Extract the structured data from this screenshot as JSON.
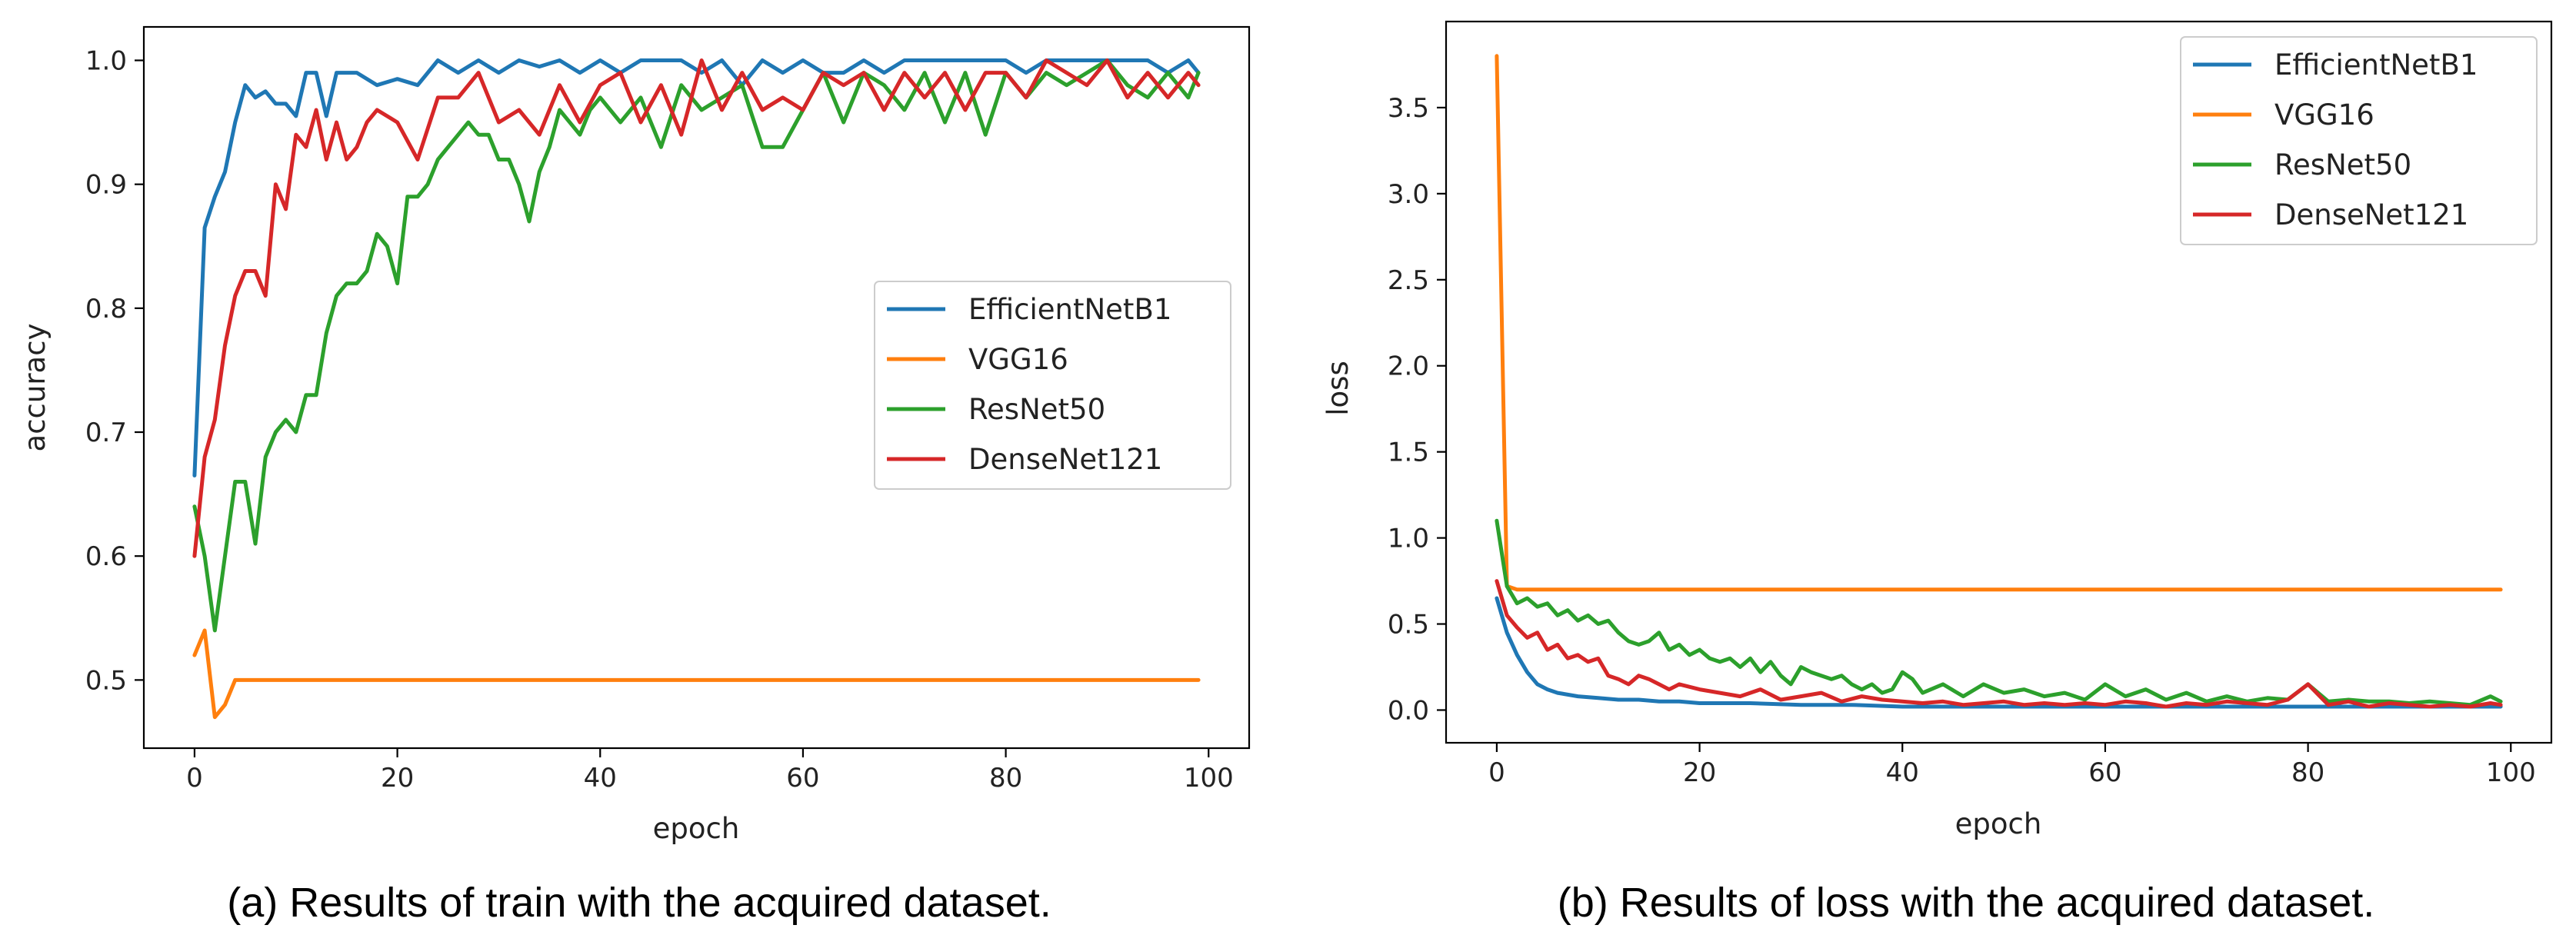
{
  "chart_data": [
    {
      "type": "line",
      "caption": "(a) Results of train with the acquired dataset.",
      "xlabel": "epoch",
      "ylabel": "accuracy",
      "xlim": [
        -5,
        104
      ],
      "ylim": [
        0.445,
        1.027
      ],
      "xticks": [
        0,
        20,
        40,
        60,
        80,
        100
      ],
      "xtick_labels": [
        "0",
        "20",
        "40",
        "60",
        "80",
        "100"
      ],
      "yticks": [
        0.5,
        0.6,
        0.7,
        0.8,
        0.9,
        1.0
      ],
      "ytick_labels": [
        "0.5",
        "0.6",
        "0.7",
        "0.8",
        "0.9",
        "1.0"
      ],
      "legend_position": "center-right",
      "series": [
        {
          "name": "EfficientNetB1",
          "color": "#1f77b4",
          "x": [
            0,
            1,
            2,
            3,
            4,
            5,
            6,
            7,
            8,
            9,
            10,
            11,
            12,
            13,
            14,
            16,
            18,
            20,
            22,
            24,
            26,
            28,
            30,
            32,
            34,
            36,
            38,
            40,
            42,
            44,
            46,
            48,
            50,
            52,
            54,
            56,
            58,
            60,
            62,
            64,
            66,
            68,
            70,
            72,
            74,
            76,
            78,
            80,
            82,
            84,
            86,
            88,
            90,
            92,
            94,
            96,
            98,
            99
          ],
          "y": [
            0.665,
            0.865,
            0.89,
            0.91,
            0.95,
            0.98,
            0.97,
            0.975,
            0.965,
            0.965,
            0.955,
            0.99,
            0.99,
            0.955,
            0.99,
            0.99,
            0.98,
            0.985,
            0.98,
            1.0,
            0.99,
            1.0,
            0.99,
            1.0,
            0.995,
            1.0,
            0.99,
            1.0,
            0.99,
            1.0,
            1.0,
            1.0,
            0.99,
            1.0,
            0.98,
            1.0,
            0.99,
            1.0,
            0.99,
            0.99,
            1.0,
            0.99,
            1.0,
            1.0,
            1.0,
            1.0,
            1.0,
            1.0,
            0.99,
            1.0,
            1.0,
            1.0,
            1.0,
            1.0,
            1.0,
            0.99,
            1.0,
            0.99
          ]
        },
        {
          "name": "VGG16",
          "color": "#ff7f0e",
          "x": [
            0,
            1,
            2,
            3,
            4,
            5,
            10,
            20,
            40,
            60,
            80,
            99
          ],
          "y": [
            0.52,
            0.54,
            0.47,
            0.48,
            0.5,
            0.5,
            0.5,
            0.5,
            0.5,
            0.5,
            0.5,
            0.5
          ]
        },
        {
          "name": "ResNet50",
          "color": "#2ca02c",
          "x": [
            0,
            1,
            2,
            3,
            4,
            5,
            6,
            7,
            8,
            9,
            10,
            11,
            12,
            13,
            14,
            15,
            16,
            17,
            18,
            19,
            20,
            21,
            22,
            23,
            24,
            25,
            26,
            27,
            28,
            29,
            30,
            31,
            32,
            33,
            34,
            35,
            36,
            37,
            38,
            39,
            40,
            42,
            44,
            46,
            48,
            50,
            52,
            54,
            56,
            58,
            60,
            62,
            64,
            66,
            68,
            70,
            72,
            74,
            76,
            78,
            80,
            82,
            84,
            86,
            88,
            90,
            92,
            94,
            96,
            98,
            99
          ],
          "y": [
            0.64,
            0.6,
            0.54,
            0.6,
            0.66,
            0.66,
            0.61,
            0.68,
            0.7,
            0.71,
            0.7,
            0.73,
            0.73,
            0.78,
            0.81,
            0.82,
            0.82,
            0.83,
            0.86,
            0.85,
            0.82,
            0.89,
            0.89,
            0.9,
            0.92,
            0.93,
            0.94,
            0.95,
            0.94,
            0.94,
            0.92,
            0.92,
            0.9,
            0.87,
            0.91,
            0.93,
            0.96,
            0.95,
            0.94,
            0.96,
            0.97,
            0.95,
            0.97,
            0.93,
            0.98,
            0.96,
            0.97,
            0.98,
            0.93,
            0.93,
            0.96,
            0.99,
            0.95,
            0.99,
            0.98,
            0.96,
            0.99,
            0.95,
            0.99,
            0.94,
            0.99,
            0.97,
            0.99,
            0.98,
            0.99,
            1.0,
            0.98,
            0.97,
            0.99,
            0.97,
            0.99
          ]
        },
        {
          "name": "DenseNet121",
          "color": "#d62728",
          "x": [
            0,
            1,
            2,
            3,
            4,
            5,
            6,
            7,
            8,
            9,
            10,
            11,
            12,
            13,
            14,
            15,
            16,
            17,
            18,
            20,
            22,
            24,
            26,
            28,
            30,
            32,
            34,
            36,
            38,
            40,
            42,
            44,
            46,
            48,
            50,
            52,
            54,
            56,
            58,
            60,
            62,
            64,
            66,
            68,
            70,
            72,
            74,
            76,
            78,
            80,
            82,
            84,
            86,
            88,
            90,
            92,
            94,
            96,
            98,
            99
          ],
          "y": [
            0.6,
            0.68,
            0.71,
            0.77,
            0.81,
            0.83,
            0.83,
            0.81,
            0.9,
            0.88,
            0.94,
            0.93,
            0.96,
            0.92,
            0.95,
            0.92,
            0.93,
            0.95,
            0.96,
            0.95,
            0.92,
            0.97,
            0.97,
            0.99,
            0.95,
            0.96,
            0.94,
            0.98,
            0.95,
            0.98,
            0.99,
            0.95,
            0.98,
            0.94,
            1.0,
            0.96,
            0.99,
            0.96,
            0.97,
            0.96,
            0.99,
            0.98,
            0.99,
            0.96,
            0.99,
            0.97,
            0.99,
            0.96,
            0.99,
            0.99,
            0.97,
            1.0,
            0.99,
            0.98,
            1.0,
            0.97,
            0.99,
            0.97,
            0.99,
            0.98
          ]
        }
      ]
    },
    {
      "type": "line",
      "caption": "(b) Results of loss with the acquired dataset.",
      "xlabel": "epoch",
      "ylabel": "loss",
      "xlim": [
        -5,
        104
      ],
      "ylim": [
        -0.19,
        4.0
      ],
      "xticks": [
        0,
        20,
        40,
        60,
        80,
        100
      ],
      "xtick_labels": [
        "0",
        "20",
        "40",
        "60",
        "80",
        "100"
      ],
      "yticks": [
        0.0,
        0.5,
        1.0,
        1.5,
        2.0,
        2.5,
        3.0,
        3.5
      ],
      "ytick_labels": [
        "0.0",
        "0.5",
        "1.0",
        "1.5",
        "2.0",
        "2.5",
        "3.0",
        "3.5"
      ],
      "legend_position": "top-right",
      "series": [
        {
          "name": "EfficientNetB1",
          "color": "#1f77b4",
          "x": [
            0,
            1,
            2,
            3,
            4,
            5,
            6,
            8,
            10,
            12,
            14,
            16,
            18,
            20,
            25,
            30,
            35,
            40,
            50,
            60,
            70,
            80,
            90,
            99
          ],
          "y": [
            0.65,
            0.45,
            0.32,
            0.22,
            0.15,
            0.12,
            0.1,
            0.08,
            0.07,
            0.06,
            0.06,
            0.05,
            0.05,
            0.04,
            0.04,
            0.03,
            0.03,
            0.02,
            0.02,
            0.02,
            0.02,
            0.02,
            0.02,
            0.02
          ]
        },
        {
          "name": "VGG16",
          "color": "#ff7f0e",
          "x": [
            0,
            1,
            2,
            3,
            5,
            10,
            20,
            40,
            60,
            80,
            99
          ],
          "y": [
            3.8,
            0.72,
            0.7,
            0.7,
            0.7,
            0.7,
            0.7,
            0.7,
            0.7,
            0.7,
            0.7
          ]
        },
        {
          "name": "ResNet50",
          "color": "#2ca02c",
          "x": [
            0,
            1,
            2,
            3,
            4,
            5,
            6,
            7,
            8,
            9,
            10,
            11,
            12,
            13,
            14,
            15,
            16,
            17,
            18,
            19,
            20,
            21,
            22,
            23,
            24,
            25,
            26,
            27,
            28,
            29,
            30,
            31,
            32,
            33,
            34,
            35,
            36,
            37,
            38,
            39,
            40,
            41,
            42,
            44,
            46,
            48,
            50,
            52,
            54,
            56,
            58,
            60,
            62,
            64,
            66,
            68,
            70,
            72,
            74,
            76,
            78,
            80,
            82,
            84,
            86,
            88,
            90,
            92,
            94,
            96,
            98,
            99
          ],
          "y": [
            1.1,
            0.72,
            0.62,
            0.65,
            0.6,
            0.62,
            0.55,
            0.58,
            0.52,
            0.55,
            0.5,
            0.52,
            0.45,
            0.4,
            0.38,
            0.4,
            0.45,
            0.35,
            0.38,
            0.32,
            0.35,
            0.3,
            0.28,
            0.3,
            0.25,
            0.3,
            0.22,
            0.28,
            0.2,
            0.15,
            0.25,
            0.22,
            0.2,
            0.18,
            0.2,
            0.15,
            0.12,
            0.15,
            0.1,
            0.12,
            0.22,
            0.18,
            0.1,
            0.15,
            0.08,
            0.15,
            0.1,
            0.12,
            0.08,
            0.1,
            0.06,
            0.15,
            0.08,
            0.12,
            0.06,
            0.1,
            0.05,
            0.08,
            0.05,
            0.07,
            0.06,
            0.15,
            0.05,
            0.06,
            0.05,
            0.05,
            0.04,
            0.05,
            0.04,
            0.03,
            0.08,
            0.05
          ]
        },
        {
          "name": "DenseNet121",
          "color": "#d62728",
          "x": [
            0,
            1,
            2,
            3,
            4,
            5,
            6,
            7,
            8,
            9,
            10,
            11,
            12,
            13,
            14,
            15,
            16,
            17,
            18,
            20,
            22,
            24,
            26,
            28,
            30,
            32,
            34,
            36,
            38,
            40,
            42,
            44,
            46,
            48,
            50,
            52,
            54,
            56,
            58,
            60,
            62,
            64,
            66,
            68,
            70,
            72,
            74,
            76,
            78,
            80,
            82,
            84,
            86,
            88,
            90,
            92,
            94,
            96,
            98,
            99
          ],
          "y": [
            0.75,
            0.55,
            0.48,
            0.42,
            0.45,
            0.35,
            0.38,
            0.3,
            0.32,
            0.28,
            0.3,
            0.2,
            0.18,
            0.15,
            0.2,
            0.18,
            0.15,
            0.12,
            0.15,
            0.12,
            0.1,
            0.08,
            0.12,
            0.06,
            0.08,
            0.1,
            0.05,
            0.08,
            0.06,
            0.05,
            0.04,
            0.05,
            0.03,
            0.04,
            0.05,
            0.03,
            0.04,
            0.03,
            0.04,
            0.03,
            0.05,
            0.04,
            0.02,
            0.04,
            0.03,
            0.05,
            0.04,
            0.03,
            0.06,
            0.15,
            0.03,
            0.05,
            0.02,
            0.04,
            0.03,
            0.02,
            0.03,
            0.02,
            0.04,
            0.03
          ]
        }
      ]
    }
  ]
}
